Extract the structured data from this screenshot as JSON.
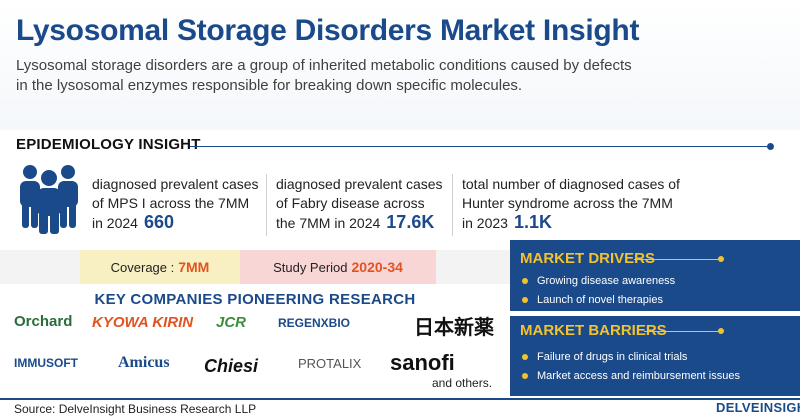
{
  "title": "Lysosomal Storage Disorders Market Insight",
  "description": "Lysosomal storage disorders are a group of inherited metabolic conditions caused by defects in the lysosomal enzymes responsible for breaking down specific molecules.",
  "epidemiology": {
    "heading": "EPIDEMIOLOGY INSIGHT",
    "stats": [
      {
        "text": "diagnosed prevalent cases of MPS I across the 7MM in 2024",
        "value": "660"
      },
      {
        "text": "diagnosed prevalent cases of Fabry disease across the 7MM in 2024",
        "value": "17.6K"
      },
      {
        "text": "total number of diagnosed cases of Hunter syndrome across the 7MM in 2023",
        "value": "1.1K"
      }
    ]
  },
  "coverage": {
    "label": "Coverage :",
    "value": "7MM"
  },
  "study_period": {
    "label": "Study Period",
    "value": "2020-34"
  },
  "key_companies": {
    "heading": "KEY COMPANIES PIONEERING RESEARCH",
    "companies": [
      "Orchard",
      "KYOWA KIRIN",
      "JCR",
      "REGENXBIO",
      "日本新薬",
      "IMMUSOFT",
      "Amicus",
      "Chiesi",
      "PROTALIX",
      "sanofi"
    ],
    "others": "and others."
  },
  "market_drivers": {
    "heading": "MARKET DRIVERS",
    "items": [
      "Growing disease awareness",
      "Launch of novel therapies"
    ]
  },
  "market_barriers": {
    "heading": "MARKET BARRIERS",
    "items": [
      "Failure of drugs in clinical trials",
      "Market access and reimbursement issues"
    ]
  },
  "footer": {
    "source": "Source: DelveInsight Business Research LLP",
    "brand": "DELVEINSIGHT"
  },
  "colors": {
    "primary": "#1b4a8a",
    "accent": "#f2c230",
    "highlight": "#e3531f"
  }
}
